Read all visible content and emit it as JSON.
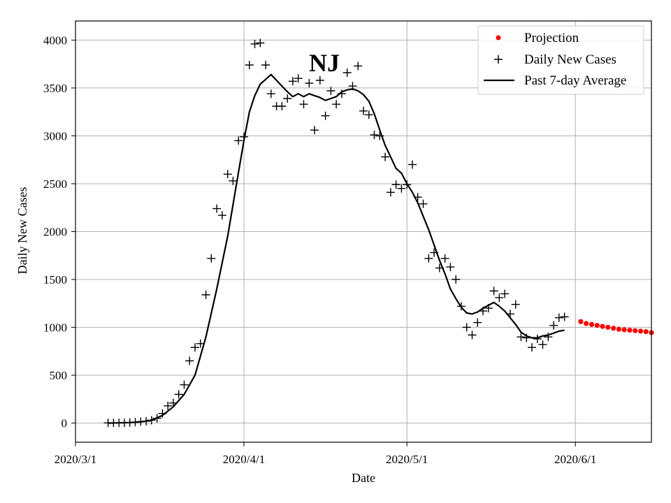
{
  "chart_data": {
    "type": "scatter",
    "annotation": "NJ",
    "xlabel": "Date",
    "ylabel": "Daily New Cases",
    "xlim": [
      0,
      106
    ],
    "ylim": [
      -200,
      4200
    ],
    "grid": true,
    "legend_position": "top-right",
    "x_ticks": [
      {
        "day": 0,
        "label": "2020/3/1"
      },
      {
        "day": 31,
        "label": "2020/4/1"
      },
      {
        "day": 61,
        "label": "2020/5/1"
      },
      {
        "day": 92,
        "label": "2020/6/1"
      }
    ],
    "y_ticks": [
      0,
      500,
      1000,
      1500,
      2000,
      2500,
      3000,
      3500,
      4000
    ],
    "legend": [
      {
        "name": "Projection",
        "marker": "dot",
        "color": "#ff0000"
      },
      {
        "name": "Daily New Cases",
        "marker": "plus",
        "color": "#000000"
      },
      {
        "name": "Past 7-day Average",
        "marker": "line",
        "color": "#000000"
      }
    ],
    "series": [
      {
        "name": "Daily New Cases",
        "x": [
          6,
          7,
          8,
          9,
          10,
          11,
          12,
          13,
          14,
          15,
          16,
          17,
          18,
          19,
          20,
          21,
          22,
          23,
          24,
          25,
          26,
          27,
          28,
          29,
          30,
          31,
          32,
          33,
          34,
          35,
          36,
          37,
          38,
          39,
          40,
          41,
          42,
          43,
          44,
          45,
          46,
          47,
          48,
          49,
          50,
          51,
          52,
          53,
          54,
          55,
          56,
          57,
          58,
          59,
          60,
          61,
          62,
          63,
          64,
          65,
          66,
          67,
          68,
          69,
          70,
          71,
          72,
          73,
          74,
          75,
          76,
          77,
          78,
          79,
          80,
          81,
          82,
          83,
          84,
          85,
          86,
          87,
          88,
          89,
          90
        ],
        "values": [
          2,
          2,
          3,
          3,
          5,
          10,
          15,
          20,
          30,
          50,
          100,
          180,
          210,
          300,
          400,
          650,
          790,
          830,
          1340,
          1720,
          2240,
          2170,
          2600,
          2530,
          2950,
          2990,
          3740,
          3960,
          3970,
          3740,
          3440,
          3310,
          3310,
          3390,
          3570,
          3600,
          3330,
          3550,
          3060,
          3580,
          3210,
          3470,
          3330,
          3440,
          3660,
          3520,
          3730,
          3260,
          3220,
          3010,
          3000,
          2780,
          2410,
          2490,
          2450,
          2490,
          2700,
          2360,
          2290,
          1720,
          1780,
          1620,
          1720,
          1630,
          1500,
          1220,
          1000,
          920,
          1050,
          1170,
          1200,
          1380,
          1310,
          1350,
          1140,
          1240,
          900,
          890,
          790,
          880,
          820,
          900,
          1020,
          1100,
          1110
        ]
      },
      {
        "name": "Past 7-day Average",
        "x": [
          6,
          8,
          10,
          12,
          14,
          16,
          18,
          20,
          22,
          24,
          26,
          28,
          30,
          31,
          32,
          33,
          34,
          35,
          36,
          37,
          38,
          39,
          40,
          41,
          42,
          43,
          44,
          45,
          46,
          47,
          48,
          49,
          50,
          51,
          52,
          53,
          54,
          55,
          56,
          57,
          58,
          59,
          60,
          61,
          62,
          63,
          64,
          65,
          66,
          67,
          68,
          69,
          70,
          71,
          72,
          73,
          74,
          75,
          76,
          77,
          78,
          79,
          80,
          81,
          82,
          83,
          84,
          85,
          86,
          87,
          88,
          89,
          90
        ],
        "values": [
          0,
          2,
          5,
          12,
          30,
          80,
          170,
          300,
          500,
          900,
          1400,
          1950,
          2620,
          2950,
          3250,
          3420,
          3540,
          3590,
          3640,
          3580,
          3520,
          3460,
          3410,
          3440,
          3410,
          3440,
          3420,
          3400,
          3370,
          3390,
          3410,
          3460,
          3480,
          3490,
          3470,
          3430,
          3360,
          3230,
          3060,
          2900,
          2780,
          2660,
          2610,
          2500,
          2410,
          2300,
          2160,
          2020,
          1860,
          1700,
          1560,
          1400,
          1300,
          1210,
          1150,
          1140,
          1160,
          1200,
          1230,
          1260,
          1220,
          1170,
          1100,
          1030,
          950,
          910,
          890,
          890,
          910,
          920,
          940,
          960,
          970
        ]
      },
      {
        "name": "Projection",
        "x": [
          93,
          94,
          95,
          96,
          97,
          98,
          99,
          100,
          101,
          102,
          103,
          104,
          105,
          106
        ],
        "values": [
          1060,
          1040,
          1030,
          1020,
          1010,
          1000,
          990,
          980,
          975,
          970,
          965,
          960,
          955,
          945
        ]
      }
    ]
  }
}
